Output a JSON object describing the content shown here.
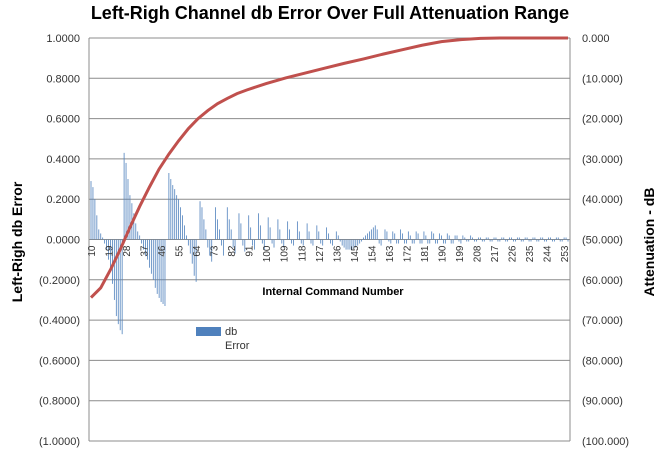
{
  "chart_data": {
    "type": "bar",
    "title": "Left-Righ Channel db Error Over Full Attenuation  Range",
    "xlabel": "Internal Command Number",
    "ylabel": "Left-Righ db Error",
    "y2label": "Attenuation - dB",
    "ylim": [
      -1.0,
      1.0
    ],
    "y2lim": [
      -100,
      0
    ],
    "y_ticks": [
      "1.0000",
      "0.8000",
      "0.6000",
      "0.4000",
      "0.2000",
      "0.0000",
      "(0.2000)",
      "(0.4000)",
      "(0.6000)",
      "(0.8000)",
      "(1.0000)"
    ],
    "y2_ticks": [
      "0.000",
      "(10.000)",
      "(20.000)",
      "(30.000)",
      "(40.000)",
      "(50.000)",
      "(60.000)",
      "(70.000)",
      "(80.000)",
      "(90.000)",
      "(100.000)"
    ],
    "x_range": [
      10,
      255
    ],
    "x_ticks": [
      "10",
      "19",
      "28",
      "37",
      "46",
      "55",
      "64",
      "73",
      "82",
      "91",
      "100",
      "109",
      "118",
      "127",
      "136",
      "145",
      "154",
      "163",
      "172",
      "181",
      "190",
      "199",
      "208",
      "217",
      "226",
      "235",
      "244",
      "253"
    ],
    "grid": true,
    "legend_position": "inside-left",
    "series": [
      {
        "name": "db Error",
        "type": "bar",
        "axis": "left",
        "color": "#4f81bd",
        "points": [
          [
            10,
            0.29
          ],
          [
            11,
            0.26
          ],
          [
            12,
            0.2
          ],
          [
            13,
            0.12
          ],
          [
            14,
            0.05
          ],
          [
            15,
            0.03
          ],
          [
            16,
            0.01
          ],
          [
            17,
            -0.02
          ],
          [
            18,
            -0.05
          ],
          [
            19,
            -0.1
          ],
          [
            20,
            -0.15
          ],
          [
            21,
            -0.22
          ],
          [
            22,
            -0.3
          ],
          [
            23,
            -0.38
          ],
          [
            24,
            -0.42
          ],
          [
            25,
            -0.45
          ],
          [
            26,
            -0.47
          ],
          [
            27,
            0.43
          ],
          [
            28,
            0.38
          ],
          [
            29,
            0.3
          ],
          [
            30,
            0.22
          ],
          [
            31,
            0.18
          ],
          [
            32,
            0.13
          ],
          [
            33,
            0.08
          ],
          [
            34,
            0.04
          ],
          [
            35,
            0.02
          ],
          [
            36,
            -0.02
          ],
          [
            37,
            -0.05
          ],
          [
            38,
            -0.08
          ],
          [
            39,
            -0.1
          ],
          [
            40,
            -0.14
          ],
          [
            41,
            -0.17
          ],
          [
            42,
            -0.2
          ],
          [
            43,
            -0.24
          ],
          [
            44,
            -0.27
          ],
          [
            45,
            -0.29
          ],
          [
            46,
            -0.31
          ],
          [
            47,
            -0.32
          ],
          [
            48,
            -0.33
          ],
          [
            50,
            0.33
          ],
          [
            51,
            0.3
          ],
          [
            52,
            0.27
          ],
          [
            53,
            0.25
          ],
          [
            54,
            0.22
          ],
          [
            55,
            0.2
          ],
          [
            56,
            0.16
          ],
          [
            57,
            0.12
          ],
          [
            58,
            0.07
          ],
          [
            59,
            0.02
          ],
          [
            60,
            -0.03
          ],
          [
            61,
            -0.07
          ],
          [
            62,
            -0.12
          ],
          [
            63,
            -0.18
          ],
          [
            64,
            -0.21
          ],
          [
            66,
            0.19
          ],
          [
            67,
            0.16
          ],
          [
            68,
            0.1
          ],
          [
            69,
            0.05
          ],
          [
            70,
            -0.04
          ],
          [
            71,
            -0.08
          ],
          [
            72,
            -0.11
          ],
          [
            74,
            0.16
          ],
          [
            75,
            0.1
          ],
          [
            76,
            0.05
          ],
          [
            77,
            -0.03
          ],
          [
            78,
            -0.08
          ],
          [
            80,
            0.16
          ],
          [
            81,
            0.1
          ],
          [
            82,
            0.05
          ],
          [
            83,
            -0.04
          ],
          [
            84,
            -0.07
          ],
          [
            86,
            0.13
          ],
          [
            87,
            0.08
          ],
          [
            88,
            -0.03
          ],
          [
            89,
            -0.06
          ],
          [
            91,
            0.12
          ],
          [
            92,
            0.06
          ],
          [
            93,
            -0.03
          ],
          [
            94,
            -0.05
          ],
          [
            96,
            0.13
          ],
          [
            97,
            0.07
          ],
          [
            98,
            -0.02
          ],
          [
            99,
            -0.05
          ],
          [
            101,
            0.11
          ],
          [
            102,
            0.06
          ],
          [
            103,
            -0.02
          ],
          [
            104,
            -0.04
          ],
          [
            106,
            0.1
          ],
          [
            107,
            0.05
          ],
          [
            108,
            -0.02
          ],
          [
            109,
            -0.04
          ],
          [
            111,
            0.09
          ],
          [
            112,
            0.05
          ],
          [
            113,
            -0.02
          ],
          [
            114,
            -0.03
          ],
          [
            116,
            0.09
          ],
          [
            117,
            0.04
          ],
          [
            118,
            -0.02
          ],
          [
            119,
            -0.03
          ],
          [
            121,
            0.08
          ],
          [
            122,
            0.04
          ],
          [
            123,
            -0.02
          ],
          [
            124,
            -0.03
          ],
          [
            126,
            0.07
          ],
          [
            127,
            0.04
          ],
          [
            128,
            -0.02
          ],
          [
            129,
            -0.03
          ],
          [
            131,
            0.06
          ],
          [
            132,
            0.03
          ],
          [
            133,
            -0.02
          ],
          [
            134,
            -0.03
          ],
          [
            136,
            0.04
          ],
          [
            137,
            0.02
          ],
          [
            138,
            -0.01
          ],
          [
            139,
            -0.03
          ],
          [
            140,
            -0.04
          ],
          [
            141,
            -0.05
          ],
          [
            142,
            -0.05
          ],
          [
            143,
            -0.05
          ],
          [
            144,
            -0.05
          ],
          [
            145,
            -0.04
          ],
          [
            146,
            -0.04
          ],
          [
            147,
            -0.03
          ],
          [
            148,
            -0.02
          ],
          [
            149,
            -0.01
          ],
          [
            150,
            0.01
          ],
          [
            151,
            0.02
          ],
          [
            152,
            0.03
          ],
          [
            153,
            0.04
          ],
          [
            154,
            0.05
          ],
          [
            155,
            0.06
          ],
          [
            156,
            0.07
          ],
          [
            157,
            0.05
          ],
          [
            158,
            -0.02
          ],
          [
            159,
            -0.03
          ],
          [
            161,
            0.05
          ],
          [
            162,
            0.04
          ],
          [
            163,
            -0.01
          ],
          [
            164,
            -0.02
          ],
          [
            165,
            0.04
          ],
          [
            166,
            0.03
          ],
          [
            167,
            -0.02
          ],
          [
            168,
            -0.02
          ],
          [
            169,
            0.05
          ],
          [
            170,
            0.03
          ],
          [
            171,
            -0.02
          ],
          [
            172,
            -0.02
          ],
          [
            173,
            0.04
          ],
          [
            174,
            0.02
          ],
          [
            175,
            -0.02
          ],
          [
            176,
            -0.02
          ],
          [
            177,
            0.04
          ],
          [
            178,
            0.03
          ],
          [
            179,
            -0.02
          ],
          [
            180,
            -0.02
          ],
          [
            181,
            0.04
          ],
          [
            182,
            0.02
          ],
          [
            183,
            -0.02
          ],
          [
            184,
            -0.02
          ],
          [
            185,
            0.04
          ],
          [
            186,
            0.03
          ],
          [
            187,
            -0.02
          ],
          [
            188,
            -0.02
          ],
          [
            189,
            0.03
          ],
          [
            190,
            0.02
          ],
          [
            191,
            -0.02
          ],
          [
            192,
            -0.02
          ],
          [
            193,
            0.03
          ],
          [
            194,
            0.02
          ],
          [
            195,
            -0.02
          ],
          [
            196,
            -0.02
          ],
          [
            197,
            0.02
          ],
          [
            198,
            0.02
          ],
          [
            199,
            -0.01
          ],
          [
            200,
            -0.02
          ],
          [
            201,
            0.02
          ],
          [
            202,
            0.01
          ],
          [
            203,
            -0.01
          ],
          [
            204,
            -0.01
          ],
          [
            205,
            0.02
          ],
          [
            206,
            0.01
          ],
          [
            207,
            -0.01
          ],
          [
            208,
            -0.01
          ],
          [
            209,
            0.01
          ],
          [
            210,
            0.01
          ],
          [
            211,
            -0.01
          ],
          [
            212,
            -0.01
          ],
          [
            213,
            0.01
          ],
          [
            214,
            0.01
          ],
          [
            215,
            -0.01
          ],
          [
            216,
            -0.01
          ],
          [
            217,
            0.01
          ],
          [
            218,
            0.01
          ],
          [
            219,
            -0.01
          ],
          [
            220,
            -0.01
          ],
          [
            221,
            0.01
          ],
          [
            222,
            0.01
          ],
          [
            223,
            -0.01
          ],
          [
            224,
            -0.01
          ],
          [
            225,
            0.01
          ],
          [
            226,
            0.01
          ],
          [
            227,
            -0.01
          ],
          [
            228,
            -0.01
          ],
          [
            229,
            0.01
          ],
          [
            230,
            0.01
          ],
          [
            231,
            -0.01
          ],
          [
            232,
            -0.01
          ],
          [
            233,
            0.01
          ],
          [
            234,
            0.01
          ],
          [
            235,
            -0.01
          ],
          [
            236,
            -0.01
          ],
          [
            237,
            0.01
          ],
          [
            238,
            0.01
          ],
          [
            239,
            -0.01
          ],
          [
            240,
            -0.01
          ],
          [
            241,
            0.01
          ],
          [
            242,
            0.01
          ],
          [
            243,
            -0.01
          ],
          [
            244,
            -0.01
          ],
          [
            245,
            0.01
          ],
          [
            246,
            0.01
          ],
          [
            247,
            -0.01
          ],
          [
            248,
            -0.01
          ],
          [
            249,
            0.01
          ],
          [
            250,
            0.01
          ],
          [
            251,
            -0.01
          ],
          [
            252,
            -0.01
          ],
          [
            253,
            0.01
          ],
          [
            254,
            0.01
          ],
          [
            255,
            -0.01
          ]
        ]
      },
      {
        "name": "Attenuation",
        "type": "line",
        "axis": "right",
        "color": "#c0504d",
        "points": [
          [
            10,
            -64.4
          ],
          [
            15,
            -62.0
          ],
          [
            20,
            -57.5
          ],
          [
            25,
            -52.5
          ],
          [
            30,
            -47.0
          ],
          [
            35,
            -41.8
          ],
          [
            40,
            -37.0
          ],
          [
            45,
            -32.5
          ],
          [
            50,
            -28.8
          ],
          [
            55,
            -25.5
          ],
          [
            60,
            -22.5
          ],
          [
            65,
            -20.0
          ],
          [
            70,
            -18.0
          ],
          [
            75,
            -16.3
          ],
          [
            80,
            -15.0
          ],
          [
            85,
            -13.8
          ],
          [
            90,
            -12.9
          ],
          [
            100,
            -11.3
          ],
          [
            110,
            -9.9
          ],
          [
            120,
            -8.7
          ],
          [
            130,
            -7.5
          ],
          [
            140,
            -6.3
          ],
          [
            150,
            -5.2
          ],
          [
            160,
            -4.0
          ],
          [
            170,
            -2.9
          ],
          [
            180,
            -1.8
          ],
          [
            190,
            -0.9
          ],
          [
            200,
            -0.4
          ],
          [
            210,
            -0.1
          ],
          [
            220,
            0.0
          ],
          [
            230,
            0.0
          ],
          [
            240,
            0.0
          ],
          [
            255,
            0.0
          ]
        ]
      }
    ]
  }
}
